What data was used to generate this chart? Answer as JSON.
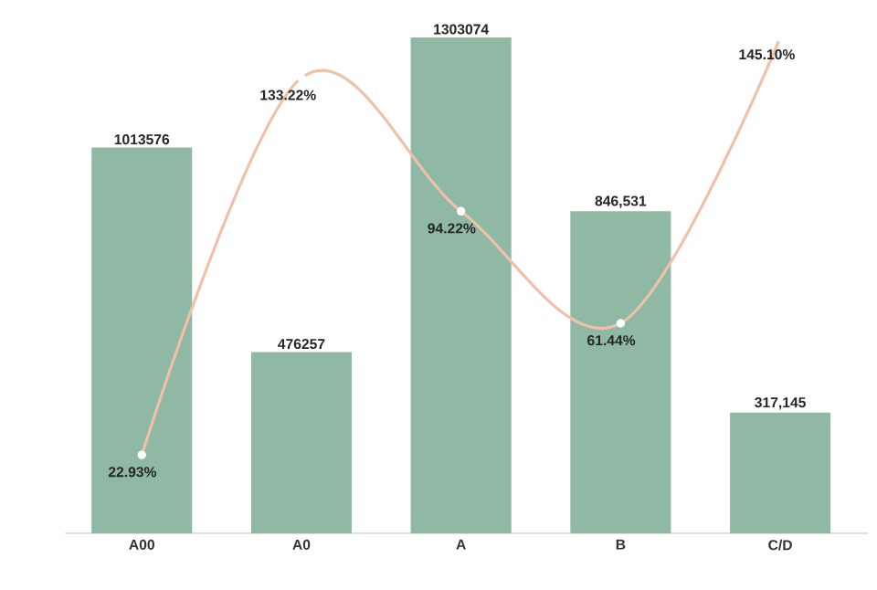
{
  "chart_data": {
    "type": "bar",
    "categories": [
      "A00",
      "A0",
      "A",
      "B",
      "C/D"
    ],
    "series": [
      {
        "color": "#8fb9a5",
        "values": [
          1013576,
          476257,
          1303074,
          846531,
          317145
        ],
        "value_labels": [
          "1013576",
          "476257",
          "1303074",
          "846,531",
          "317,145"
        ]
      },
      {
        "type": "line",
        "axis": "y2",
        "color": "#f0c0a8",
        "values": [
          22.93,
          133.22,
          94.22,
          61.44,
          145.1
        ],
        "value_labels": [
          "22.93%",
          "133.22%",
          "94.22%",
          "61.44%",
          "145.10%"
        ]
      }
    ],
    "tick_labels": "x",
    "marker": "circle"
  }
}
